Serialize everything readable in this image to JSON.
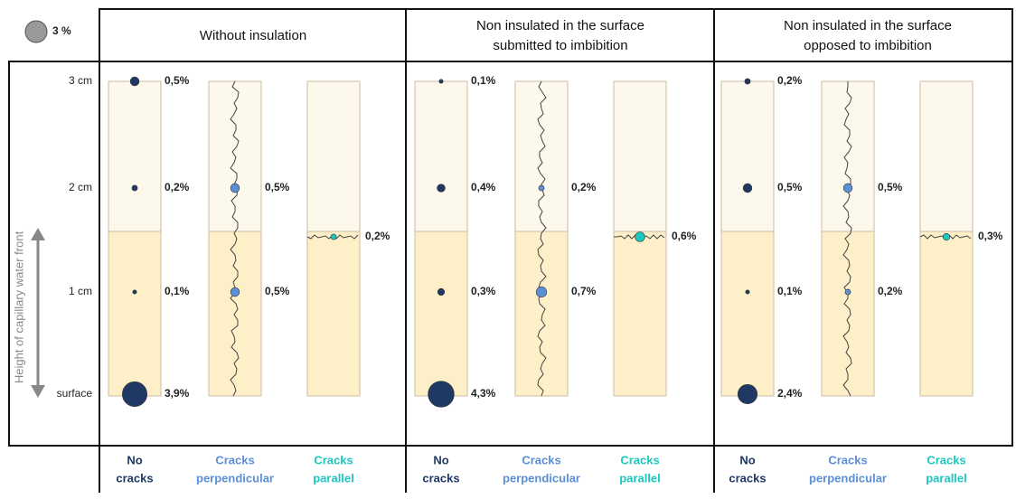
{
  "legend": {
    "value": 3,
    "label": "3 %"
  },
  "heights": [
    "3 cm",
    "2 cm",
    "1 cm",
    "surface"
  ],
  "axis_label": "Height of capillary water front",
  "panels": [
    {
      "title": [
        "Without insulation"
      ],
      "columns": [
        {
          "label": [
            "No",
            "cracks"
          ],
          "color": "#1f3864",
          "values": [
            0.5,
            0.2,
            0.1,
            3.9
          ],
          "value_labels": [
            "0,5%",
            "0,2%",
            "0,1%",
            "3,9%"
          ]
        },
        {
          "label": [
            "Cracks",
            "perpendicular"
          ],
          "color": "#5b8fd6",
          "values": [
            null,
            0.5,
            0.5,
            null
          ],
          "value_labels": [
            null,
            "0,5%",
            "0,5%",
            null
          ]
        },
        {
          "label": [
            "Cracks",
            "parallel"
          ],
          "color": "#1cc7c0",
          "values": [
            0.2
          ],
          "value_labels": [
            "0,2%"
          ]
        }
      ]
    },
    {
      "title": [
        "Non insulated in the surface",
        "submitted to imbibition"
      ],
      "columns": [
        {
          "label": [
            "No",
            "cracks"
          ],
          "color": "#1f3864",
          "values": [
            0.1,
            0.4,
            0.3,
            4.3
          ],
          "value_labels": [
            "0,1%",
            "0,4%",
            "0,3%",
            "4,3%"
          ]
        },
        {
          "label": [
            "Cracks",
            "perpendicular"
          ],
          "color": "#5b8fd6",
          "values": [
            null,
            0.2,
            0.7,
            null
          ],
          "value_labels": [
            null,
            "0,2%",
            "0,7%",
            null
          ]
        },
        {
          "label": [
            "Cracks",
            "parallel"
          ],
          "color": "#1cc7c0",
          "values": [
            0.6
          ],
          "value_labels": [
            "0,6%"
          ]
        }
      ]
    },
    {
      "title": [
        "Non insulated in the surface",
        "opposed to imbibition"
      ],
      "columns": [
        {
          "label": [
            "No",
            "cracks"
          ],
          "color": "#1f3864",
          "values": [
            0.2,
            0.5,
            0.1,
            2.4
          ],
          "value_labels": [
            "0,2%",
            "0,5%",
            "0,1%",
            "2,4%"
          ]
        },
        {
          "label": [
            "Cracks",
            "perpendicular"
          ],
          "color": "#5b8fd6",
          "values": [
            null,
            0.5,
            0.2,
            null
          ],
          "value_labels": [
            null,
            "0,5%",
            "0,2%",
            null
          ]
        },
        {
          "label": [
            "Cracks",
            "parallel"
          ],
          "color": "#1cc7c0",
          "values": [
            0.3
          ],
          "value_labels": [
            "0,3%"
          ]
        }
      ]
    }
  ]
}
